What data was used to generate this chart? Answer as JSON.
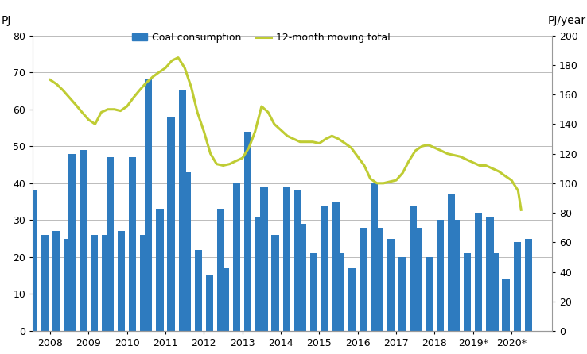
{
  "bar_values": [
    38,
    26,
    27,
    25,
    48,
    49,
    26,
    26,
    47,
    27,
    47,
    26,
    68,
    33,
    58,
    65,
    43,
    22,
    15,
    33,
    17,
    40,
    54,
    31,
    39,
    26,
    39,
    38,
    29,
    21,
    34,
    35,
    21,
    17,
    28,
    40,
    28,
    25,
    20,
    34,
    28,
    20,
    30,
    37,
    30,
    21,
    32,
    31,
    21,
    14,
    24,
    25
  ],
  "bar_color": "#2E7BBF",
  "line_x": [
    2008.0,
    2008.17,
    2008.33,
    2008.5,
    2008.67,
    2008.83,
    2009.0,
    2009.17,
    2009.33,
    2009.5,
    2009.67,
    2009.83,
    2010.0,
    2010.17,
    2010.33,
    2010.5,
    2010.67,
    2010.83,
    2011.0,
    2011.17,
    2011.33,
    2011.5,
    2011.67,
    2011.83,
    2012.0,
    2012.17,
    2012.33,
    2012.5,
    2012.67,
    2012.83,
    2013.0,
    2013.17,
    2013.33,
    2013.5,
    2013.67,
    2013.83,
    2014.0,
    2014.17,
    2014.33,
    2014.5,
    2014.67,
    2014.83,
    2015.0,
    2015.17,
    2015.33,
    2015.5,
    2015.67,
    2015.83,
    2016.0,
    2016.17,
    2016.33,
    2016.5,
    2016.67,
    2016.83,
    2017.0,
    2017.17,
    2017.33,
    2017.5,
    2017.67,
    2017.83,
    2018.0,
    2018.17,
    2018.33,
    2018.5,
    2018.67,
    2018.83,
    2019.0,
    2019.17,
    2019.33,
    2019.5,
    2019.67,
    2019.83,
    2020.0,
    2020.17,
    2020.25
  ],
  "line_y": [
    170,
    167,
    163,
    158,
    153,
    148,
    143,
    140,
    148,
    150,
    150,
    149,
    152,
    158,
    163,
    168,
    172,
    175,
    178,
    183,
    185,
    178,
    165,
    148,
    135,
    120,
    113,
    112,
    113,
    115,
    117,
    124,
    135,
    152,
    148,
    140,
    136,
    132,
    130,
    128,
    128,
    128,
    127,
    130,
    132,
    130,
    127,
    124,
    118,
    112,
    103,
    100,
    100,
    101,
    102,
    107,
    115,
    122,
    125,
    126,
    124,
    122,
    120,
    119,
    118,
    116,
    114,
    112,
    112,
    110,
    108,
    105,
    102,
    95,
    82
  ],
  "line_color": "#BFCC33",
  "x_tick_labels": [
    "2008",
    "2009",
    "2010",
    "2011",
    "2012",
    "2013",
    "2014",
    "2015",
    "2016",
    "2017",
    "2018",
    "2019*",
    "2020*"
  ],
  "left_ylabel": "PJ",
  "right_ylabel": "PJ/year",
  "left_ylim": [
    0,
    80
  ],
  "left_yticks": [
    0,
    10,
    20,
    30,
    40,
    50,
    60,
    70,
    80
  ],
  "right_ylim": [
    0,
    200
  ],
  "right_yticks": [
    0,
    20,
    40,
    60,
    80,
    100,
    120,
    140,
    160,
    180,
    200
  ],
  "legend_bar_label": "Coal consumption",
  "legend_line_label": "12-month moving total",
  "grid_color": "#BBBBBB",
  "background_color": "#FFFFFF",
  "spine_color": "#999999"
}
